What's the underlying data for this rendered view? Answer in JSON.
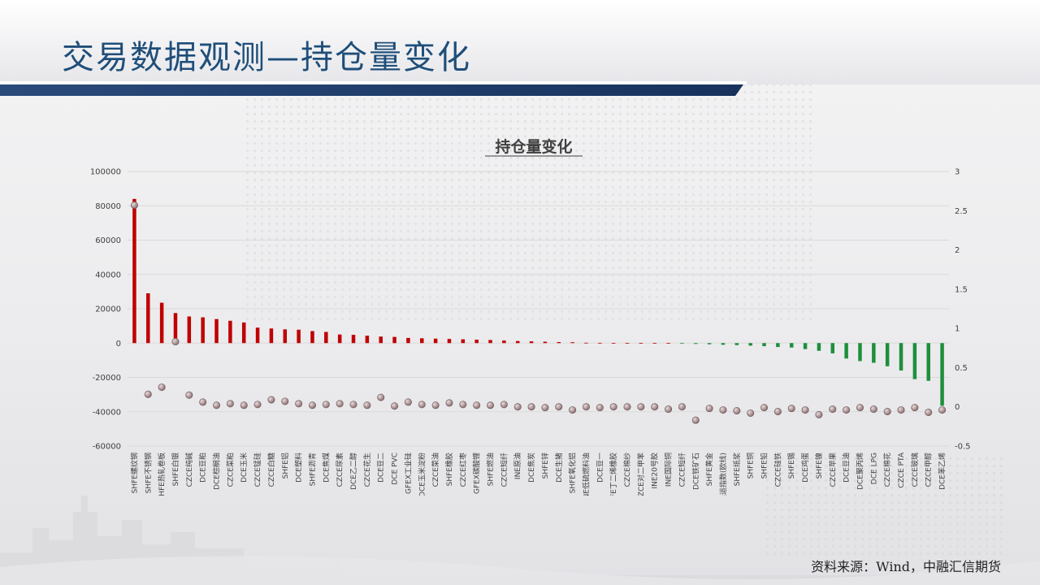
{
  "header": {
    "title": "交易数据观测—持仓量变化"
  },
  "footer": {
    "source": "资料来源：Wind，中融汇信期货"
  },
  "colors": {
    "positive_bar": "#c00000",
    "negative_bar": "#1e8f3c",
    "marker": "#8c6f72",
    "title_text": "#1f4e79",
    "band_dark": "#1f3a64"
  },
  "chart_data": {
    "type": "bar",
    "title": "持仓量变化",
    "y_left": {
      "min": -60000,
      "max": 100000,
      "ticks": [
        100000,
        80000,
        60000,
        40000,
        20000,
        0,
        -20000,
        -40000,
        -60000
      ]
    },
    "y_right": {
      "min": -0.5,
      "max": 3,
      "ticks": [
        3,
        2.5,
        2,
        1.5,
        1,
        0.5,
        0,
        -0.5
      ]
    },
    "grid": true,
    "categories": [
      "SHFE螺纹钢",
      "SHFE不锈钢",
      "SHFE热轧卷板",
      "SHFE白银",
      "CZCE纯碱",
      "DCE豆粕",
      "DCE棕榈油",
      "CZCE菜粕",
      "DCE玉米",
      "CZCE锰硅",
      "CZCE白糖",
      "SHFE铝",
      "DCE塑料",
      "SHFE沥青",
      "DCE焦煤",
      "CZCE尿素",
      "DCE乙二醇",
      "CZCE花生",
      "DCE豆二",
      "DCE PVC",
      "GFEX工业硅",
      "DCE玉米淀粉",
      "CZCE菜油",
      "SHFE橡胶",
      "CZCE红枣",
      "GFEX碳酸锂",
      "SHFE燃油",
      "CZCE短纤",
      "INE原油",
      "DCE焦炭",
      "SHFE锌",
      "DCE生猪",
      "SHFE氧化铝",
      "INE低硫燃料油",
      "DCE豆一",
      "SHFE丁二烯橡胶",
      "CZCE棉纱",
      "CZCE对二甲苯",
      "INE20号胶",
      "INE国际铜",
      "CZCE短纤",
      "DCE铁矿石",
      "SHFE黄金",
      "INE集运指数(欧线)",
      "SHFE纸浆",
      "SHFE铜",
      "SHFE铅",
      "CZCE硅铁",
      "SHFE锡",
      "DCE鸡蛋",
      "SHFE镍",
      "CZCE苹果",
      "DCE豆油",
      "DCE聚丙烯",
      "DCE LPG",
      "CZCE棉花",
      "CZCE PTA",
      "CZCE玻璃",
      "CZCE甲醇",
      "DCE苯乙烯"
    ],
    "series": [
      {
        "axis": "left",
        "style": "bar",
        "values": [
          84000,
          29000,
          23500,
          17500,
          15500,
          15000,
          14000,
          13000,
          12000,
          9000,
          8500,
          8000,
          7800,
          7000,
          6500,
          5000,
          4800,
          4300,
          3800,
          3600,
          3000,
          2800,
          2600,
          2400,
          2200,
          2000,
          1800,
          1500,
          1200,
          1000,
          800,
          600,
          500,
          200,
          150,
          100,
          80,
          60,
          40,
          20,
          -300,
          -500,
          -700,
          -1000,
          -1200,
          -1500,
          -1800,
          -2300,
          -2600,
          -3500,
          -4500,
          -6000,
          -9000,
          -10500,
          -11500,
          -13500,
          -16000,
          -21000,
          -22000,
          -36500
        ]
      },
      {
        "axis": "right",
        "style": "marker",
        "values": [
          2.57,
          0.16,
          0.25,
          0.83,
          0.15,
          0.06,
          0.02,
          0.04,
          0.02,
          0.03,
          0.09,
          0.07,
          0.04,
          0.02,
          0.03,
          0.04,
          0.03,
          0.02,
          0.12,
          0.01,
          0.06,
          0.03,
          0.02,
          0.05,
          0.03,
          0.02,
          0.02,
          0.03,
          0.0,
          0.0,
          -0.01,
          0.0,
          -0.04,
          0.0,
          -0.01,
          0.0,
          0.0,
          0.0,
          0.0,
          -0.03,
          0.0,
          -0.17,
          -0.02,
          -0.04,
          -0.05,
          -0.08,
          -0.01,
          -0.06,
          -0.02,
          -0.04,
          -0.1,
          -0.03,
          -0.04,
          -0.01,
          -0.03,
          -0.06,
          -0.04,
          -0.01,
          -0.07,
          -0.04
        ]
      }
    ]
  }
}
